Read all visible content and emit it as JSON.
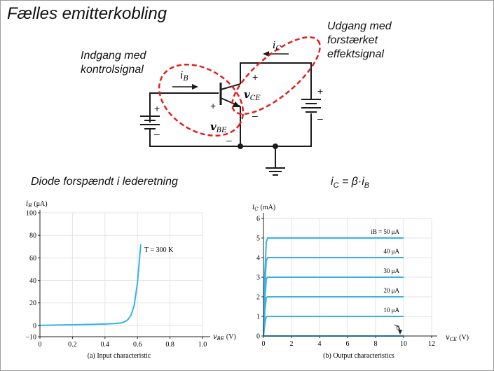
{
  "slide": {
    "title": "Fælles emitterkobling",
    "input_label": [
      "Indgang med",
      "kontrolsignal"
    ],
    "output_label": [
      "Udgang med",
      "forstærket",
      "effektsignal"
    ],
    "diode_note": "Diode forspændt i lederetning",
    "gain_formula": {
      "lhs": "i",
      "lhs_sub": "C",
      "op": " = β·i",
      "rhs_sub": "B"
    }
  },
  "circuit": {
    "ib": {
      "sym": "i",
      "sub": "B"
    },
    "ic": {
      "sym": "i",
      "sub": "C"
    },
    "vbe": {
      "sym": "v",
      "sub": "BE"
    },
    "vce": {
      "sym": "v",
      "sub": "CE"
    },
    "plus": "+",
    "minus": "–"
  },
  "colors": {
    "highlight": "#e02020",
    "curve": "#35b3e8",
    "wire": "#1a1a1a"
  },
  "chart_data": [
    {
      "type": "line",
      "title": "",
      "ylabel": "iB (μA)",
      "ylabel_sym": "i",
      "ylabel_sub": "B",
      "ylabel_unit": "(μA)",
      "xlabel": "vBE (V)",
      "xlabel_sym": "v",
      "xlabel_sub": "BE",
      "xlabel_unit": "(V)",
      "caption": "(a) Input characteristic",
      "xlim": [
        0,
        1.0
      ],
      "ylim": [
        -10,
        100
      ],
      "xticks": [
        "0",
        "0.2",
        "0.4",
        "0.6",
        "0.8",
        "1.0"
      ],
      "yticks": [
        "−10",
        "0",
        "20",
        "40",
        "60",
        "80",
        "100"
      ],
      "annotation": "T = 300 K",
      "series": [
        {
          "x": [
            0,
            0.1,
            0.2,
            0.3,
            0.4,
            0.45,
            0.5,
            0.52,
            0.54,
            0.56,
            0.58,
            0.6,
            0.62
          ],
          "y": [
            0,
            0.3,
            0.6,
            0.9,
            1.3,
            1.6,
            2.3,
            3.2,
            5,
            9,
            18,
            38,
            72
          ]
        }
      ]
    },
    {
      "type": "line",
      "title": "",
      "ylabel": "iC (mA)",
      "ylabel_sym": "i",
      "ylabel_sub": "C",
      "ylabel_unit": "(mA)",
      "xlabel": "vCE (V)",
      "xlabel_sym": "v",
      "xlabel_sub": "CE",
      "xlabel_unit": "(V)",
      "caption": "(b) Output characteristics",
      "xlim": [
        0,
        12
      ],
      "ylim": [
        0,
        6
      ],
      "xticks": [
        "0",
        "2",
        "4",
        "6",
        "8",
        "10",
        "12"
      ],
      "yticks": [
        "0",
        "1",
        "2",
        "3",
        "4",
        "5",
        "6"
      ],
      "series": [
        {
          "name": "iB = 50 μA",
          "x": [
            0,
            0.1,
            0.2,
            0.3,
            10
          ],
          "y": [
            0,
            3.2,
            4.8,
            5,
            5
          ]
        },
        {
          "name": "40 μA",
          "x": [
            0,
            0.1,
            0.2,
            0.3,
            10
          ],
          "y": [
            0,
            2.6,
            3.85,
            4,
            4
          ]
        },
        {
          "name": "30 μA",
          "x": [
            0,
            0.1,
            0.2,
            0.3,
            10
          ],
          "y": [
            0,
            1.9,
            2.9,
            3,
            3
          ]
        },
        {
          "name": "20 μA",
          "x": [
            0,
            0.1,
            0.2,
            0.3,
            10
          ],
          "y": [
            0,
            1.3,
            1.95,
            2,
            2
          ]
        },
        {
          "name": "10 μA",
          "x": [
            0,
            0.1,
            0.2,
            0.3,
            10
          ],
          "y": [
            0,
            0.65,
            0.98,
            1,
            1
          ]
        },
        {
          "name": "0",
          "x": [
            0,
            10
          ],
          "y": [
            0,
            0
          ]
        }
      ]
    }
  ]
}
